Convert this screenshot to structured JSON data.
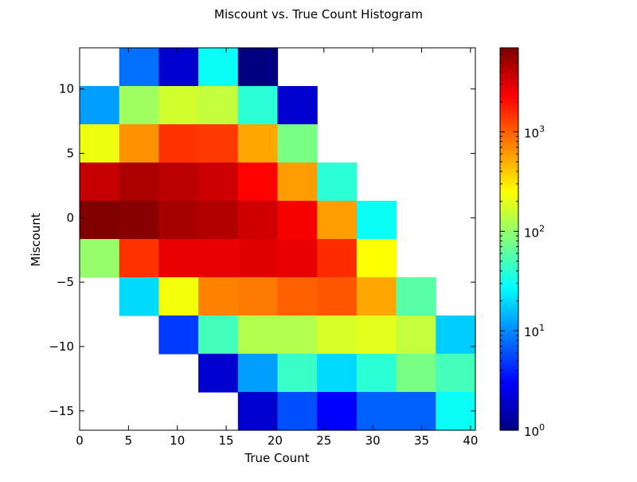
{
  "chart_data": {
    "type": "heatmap",
    "title": "Miscount vs. True Count Histogram",
    "xlabel": "True Count",
    "ylabel": "Miscount",
    "xlim": [
      0,
      40.5
    ],
    "ylim": [
      -16.5,
      13.2
    ],
    "x_edges": [
      0,
      4.05,
      8.1,
      12.15,
      16.2,
      20.25,
      24.3,
      28.35,
      32.4,
      36.45,
      40.5
    ],
    "y_edges": [
      -16.5,
      -13.53,
      -10.56,
      -7.59,
      -4.62,
      -1.65,
      1.32,
      4.29,
      7.26,
      10.23,
      13.2
    ],
    "xticks": [
      0,
      5,
      10,
      15,
      20,
      25,
      30,
      35,
      40
    ],
    "xtick_labels": [
      "0",
      "5",
      "10",
      "15",
      "20",
      "25",
      "30",
      "35",
      "40"
    ],
    "yticks": [
      10,
      5,
      0,
      -5,
      -10,
      -15
    ],
    "ytick_labels": [
      "10",
      "5",
      "0",
      "−5",
      "−10",
      "−15"
    ],
    "colorbar": {
      "scale": "log",
      "min": 1,
      "max": 7000,
      "colormap": "jet",
      "ticks": [
        1,
        10,
        100,
        1000
      ],
      "tick_labels": [
        {
          "base": "10",
          "exp": "0"
        },
        {
          "base": "10",
          "exp": "1"
        },
        {
          "base": "10",
          "exp": "2"
        },
        {
          "base": "10",
          "exp": "3"
        }
      ]
    },
    "counts_top_to_bottom": [
      [
        null,
        8,
        2,
        30,
        1,
        null,
        null,
        null,
        null,
        null
      ],
      [
        12,
        110,
        170,
        150,
        40,
        2,
        null,
        null,
        null,
        null
      ],
      [
        220,
        650,
        1500,
        1400,
        550,
        80,
        null,
        null,
        null,
        null
      ],
      [
        3800,
        4800,
        4200,
        3600,
        2300,
        600,
        40,
        null,
        null,
        null
      ],
      [
        7000,
        6500,
        5000,
        4500,
        3500,
        2500,
        600,
        30,
        null,
        null
      ],
      [
        100,
        1500,
        2800,
        2800,
        3000,
        2800,
        1600,
        250,
        null,
        null
      ],
      [
        null,
        20,
        230,
        750,
        800,
        1000,
        1100,
        550,
        60,
        null
      ],
      [
        null,
        null,
        5,
        50,
        130,
        130,
        180,
        200,
        150,
        18
      ],
      [
        null,
        null,
        null,
        2,
        12,
        45,
        20,
        40,
        80,
        50
      ],
      [
        null,
        null,
        null,
        null,
        2,
        6,
        3,
        7,
        7,
        30
      ]
    ]
  }
}
